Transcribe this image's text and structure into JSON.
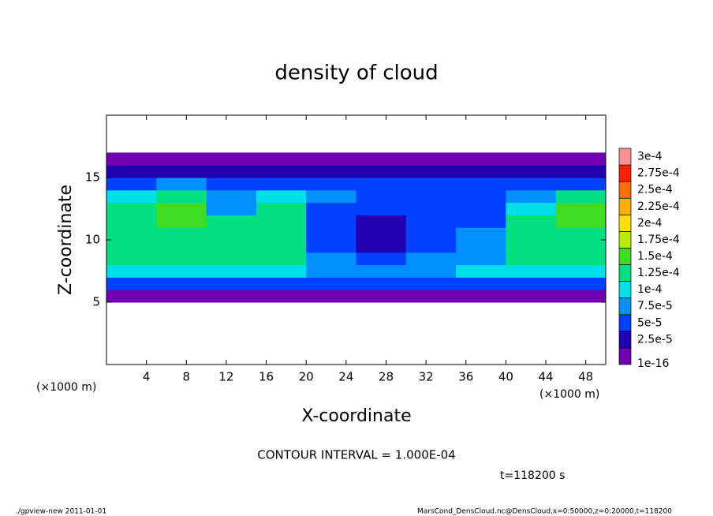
{
  "chart_data": {
    "type": "heatmap",
    "title": "density of cloud",
    "x_label": "X-coordinate",
    "y_label": "Z-coordinate",
    "x_unit": "(×1000 m)",
    "y_unit": "(×1000 m)",
    "xlim": [
      0,
      50
    ],
    "ylim": [
      0,
      20
    ],
    "xticks": [
      4,
      8,
      12,
      16,
      20,
      24,
      28,
      32,
      36,
      40,
      44,
      48
    ],
    "yticks": [
      5,
      10,
      15
    ],
    "x_edges": [
      0,
      5,
      10,
      15,
      20,
      25,
      30,
      35,
      40,
      45,
      50
    ],
    "y_edges": [
      5,
      6,
      7,
      8,
      9,
      10,
      11,
      12,
      13,
      14,
      15,
      16,
      17
    ],
    "z": [
      [
        1e-16,
        1e-16,
        1e-16,
        1e-16,
        1e-16,
        1e-16,
        1e-16,
        1e-16,
        1e-16,
        1e-16
      ],
      [
        5e-05,
        5e-05,
        5e-05,
        5e-05,
        5e-05,
        5e-05,
        5e-05,
        5e-05,
        5e-05,
        5e-05
      ],
      [
        0.0001,
        0.0001,
        0.0001,
        0.0001,
        7.5e-05,
        7.5e-05,
        7.5e-05,
        0.0001,
        0.0001,
        0.0001
      ],
      [
        0.000125,
        0.000125,
        0.000125,
        0.000125,
        7.5e-05,
        5e-05,
        7.5e-05,
        7.5e-05,
        0.000125,
        0.000125
      ],
      [
        0.000125,
        0.000125,
        0.000125,
        0.000125,
        5e-05,
        2.5e-05,
        5e-05,
        7.5e-05,
        0.000125,
        0.000125
      ],
      [
        0.000125,
        0.000125,
        0.000125,
        0.000125,
        5e-05,
        2.5e-05,
        5e-05,
        7.5e-05,
        0.000125,
        0.000125
      ],
      [
        0.000125,
        0.00015,
        0.000125,
        0.000125,
        5e-05,
        2.5e-05,
        5e-05,
        5e-05,
        0.000125,
        0.00015
      ],
      [
        0.000125,
        0.00015,
        7.5e-05,
        0.000125,
        5e-05,
        5e-05,
        5e-05,
        5e-05,
        0.0001,
        0.00015
      ],
      [
        0.0001,
        0.000125,
        7.5e-05,
        0.0001,
        7.5e-05,
        5e-05,
        5e-05,
        5e-05,
        7.5e-05,
        0.000125
      ],
      [
        5e-05,
        7.5e-05,
        5e-05,
        5e-05,
        5e-05,
        5e-05,
        5e-05,
        5e-05,
        5e-05,
        5e-05
      ],
      [
        2.5e-05,
        2.5e-05,
        2.5e-05,
        2.5e-05,
        2.5e-05,
        2.5e-05,
        2.5e-05,
        2.5e-05,
        2.5e-05,
        2.5e-05
      ],
      [
        1e-16,
        1e-16,
        1e-16,
        1e-16,
        1e-16,
        1e-16,
        1e-16,
        1e-16,
        1e-16,
        1e-16
      ]
    ],
    "levels": [
      {
        "value": 1e-16,
        "label": "1e-16"
      },
      {
        "value": 2.5e-05,
        "label": "2.5e-5"
      },
      {
        "value": 5e-05,
        "label": "5e-5"
      },
      {
        "value": 7.5e-05,
        "label": "7.5e-5"
      },
      {
        "value": 0.0001,
        "label": "1e-4"
      },
      {
        "value": 0.000125,
        "label": "1.25e-4"
      },
      {
        "value": 0.00015,
        "label": "1.5e-4"
      },
      {
        "value": 0.000175,
        "label": "1.75e-4"
      },
      {
        "value": 0.0002,
        "label": "2e-4"
      },
      {
        "value": 0.000225,
        "label": "2.25e-4"
      },
      {
        "value": 0.00025,
        "label": "2.5e-4"
      },
      {
        "value": 0.000275,
        "label": "2.75e-4"
      },
      {
        "value": 0.0003,
        "label": "3e-4"
      }
    ],
    "level_colors": [
      "#7000b0",
      "#2000b0",
      "#0040ff",
      "#0090ff",
      "#00e0e8",
      "#00e080",
      "#40dc20",
      "#b8ec00",
      "#ffe000",
      "#ffb000",
      "#ff7000",
      "#ff2000",
      "#ff9090"
    ],
    "contour_note": "CONTOUR INTERVAL = 1.000E-04",
    "time_note": "t=118200 s",
    "footer_left": "./gpview-new   2011-01-01",
    "footer_right": "MarsCond_DensCloud.nc@DensCloud,x=0:50000,z=0:20000,t=118200"
  }
}
